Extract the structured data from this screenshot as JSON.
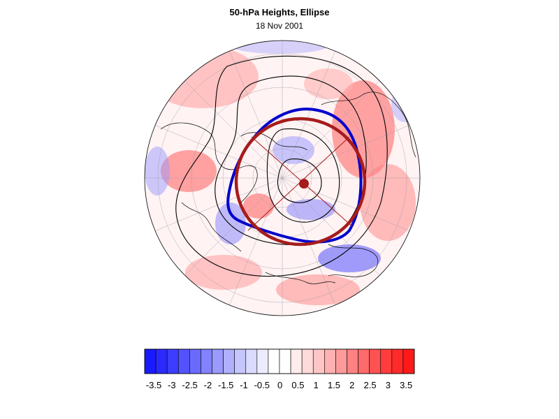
{
  "figure": {
    "title": "50-hPa Heights, Ellipse",
    "subtitle": "18 Nov 2001"
  },
  "colorbar": {
    "labels": [
      "-3.5",
      "-3",
      "-2.5",
      "-2",
      "-1.5",
      "-1",
      "-0.5",
      "0",
      "0.5",
      "1",
      "1.5",
      "2",
      "2.5",
      "3",
      "3.5"
    ],
    "colors": [
      "#1a1aff",
      "#2a2aff",
      "#3d3dff",
      "#5252ff",
      "#6a6aff",
      "#8282ff",
      "#9a9aff",
      "#b0b0ff",
      "#c6c6ff",
      "#dadaff",
      "#ececff",
      "#ffffff",
      "#ffffff",
      "#ffecec",
      "#ffdada",
      "#ffc6c6",
      "#ffb0b0",
      "#ff9a9a",
      "#ff8282",
      "#ff6a6a",
      "#ff5252",
      "#ff3d3d",
      "#ff2a2a",
      "#ff1a1a"
    ]
  },
  "map": {
    "projection": "north-polar-stereographic",
    "fitted_ellipse_color": "#a61c1c",
    "height_contour_highlight_color": "#0000cc"
  }
}
